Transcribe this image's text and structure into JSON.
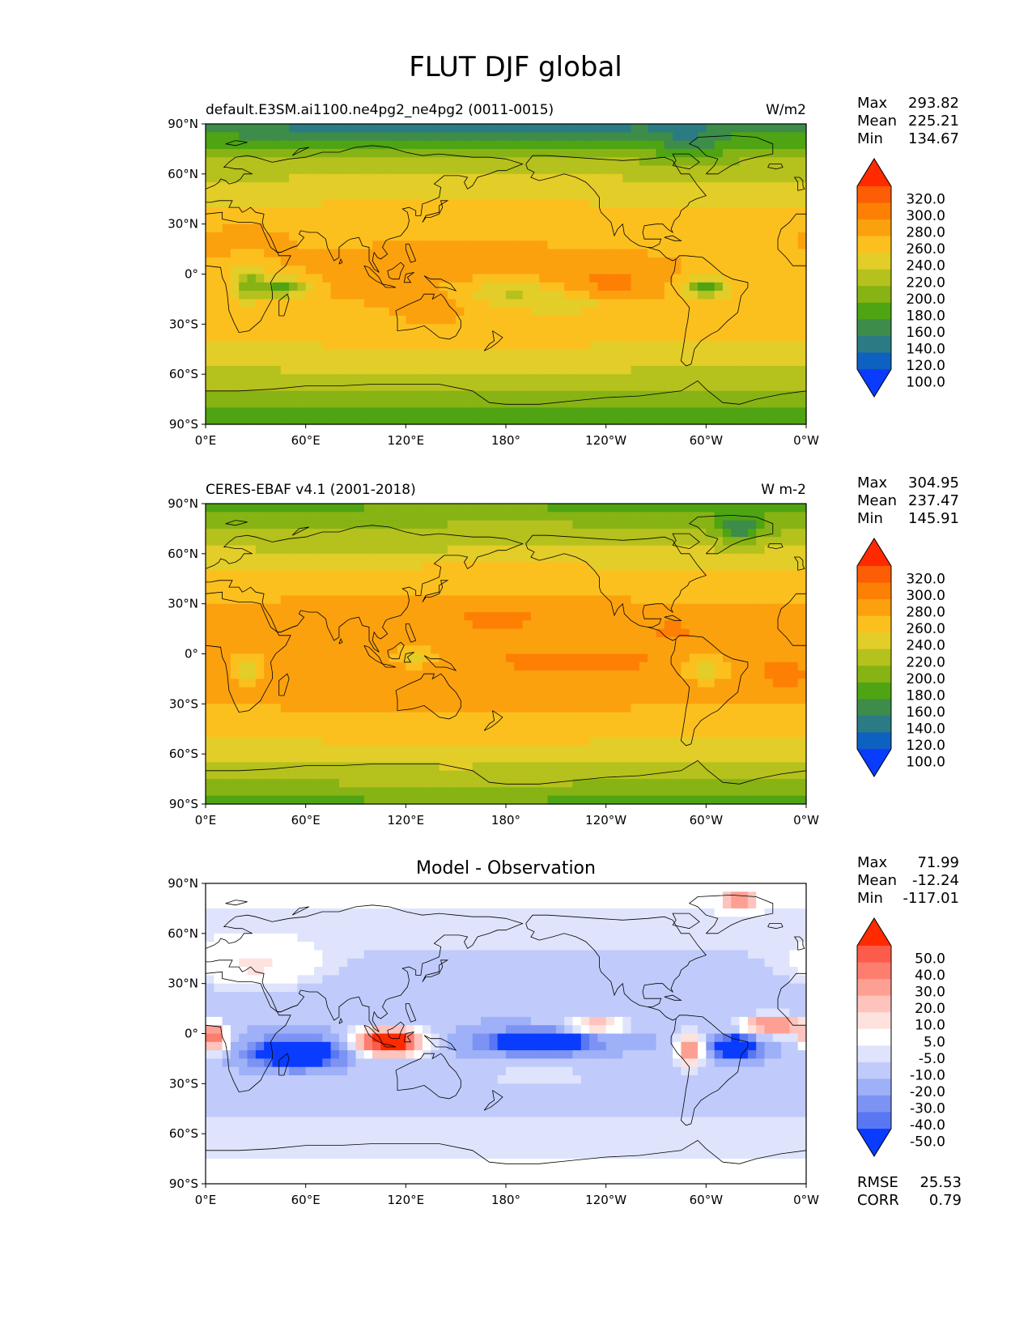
{
  "figure": {
    "title": "FLUT DJF global"
  },
  "x_ticks": [
    "0°E",
    "60°E",
    "120°E",
    "180°",
    "120°W",
    "60°W",
    "0°W"
  ],
  "y_ticks": [
    "90°N",
    "60°N",
    "30°N",
    "0°",
    "30°S",
    "60°S",
    "90°S"
  ],
  "panels": [
    {
      "id": "model",
      "title_left": "default.E3SM.ai1100.ne4pg2_ne4pg2 (0011-0015)",
      "title_center": "",
      "title_right": "W/m2",
      "stats": [
        {
          "label": "Max",
          "value": "293.82"
        },
        {
          "label": "Mean",
          "value": "225.21"
        },
        {
          "label": "Min",
          "value": "134.67"
        }
      ],
      "colorbar": {
        "levels": [
          "320.0",
          "300.0",
          "280.0",
          "260.0",
          "240.0",
          "220.0",
          "200.0",
          "180.0",
          "160.0",
          "140.0",
          "120.0",
          "100.0"
        ],
        "colors": [
          "#ff2a00",
          "#fc5d05",
          "#fd8004",
          "#fca10e",
          "#fcc01e",
          "#e3cd28",
          "#b5c11c",
          "#87b314",
          "#4ea412",
          "#3d8c4a",
          "#2a7b84",
          "#0d61c0",
          "#0a3cff"
        ]
      }
    },
    {
      "id": "obs",
      "title_left": "CERES-EBAF v4.1 (2001-2018)",
      "title_center": "",
      "title_right": "W m-2",
      "stats": [
        {
          "label": "Max",
          "value": "304.95"
        },
        {
          "label": "Mean",
          "value": "237.47"
        },
        {
          "label": "Min",
          "value": "145.91"
        }
      ],
      "colorbar": {
        "levels": [
          "320.0",
          "300.0",
          "280.0",
          "260.0",
          "240.0",
          "220.0",
          "200.0",
          "180.0",
          "160.0",
          "140.0",
          "120.0",
          "100.0"
        ],
        "colors": [
          "#ff2a00",
          "#fc5d05",
          "#fd8004",
          "#fca10e",
          "#fcc01e",
          "#e3cd28",
          "#b5c11c",
          "#87b314",
          "#4ea412",
          "#3d8c4a",
          "#2a7b84",
          "#0d61c0",
          "#0a3cff"
        ]
      }
    },
    {
      "id": "diff",
      "title_left": "",
      "title_center": "Model - Observation",
      "title_right": "",
      "stats": [
        {
          "label": "Max",
          "value": "71.99"
        },
        {
          "label": "Mean",
          "value": "-12.24"
        },
        {
          "label": "Min",
          "value": "-117.01"
        }
      ],
      "colorbar": {
        "levels": [
          "50.0",
          "40.0",
          "30.0",
          "20.0",
          "10.0",
          "5.0",
          "-5.0",
          "-10.0",
          "-20.0",
          "-30.0",
          "-40.0",
          "-50.0"
        ],
        "colors": [
          "#ff2a00",
          "#fd5c4a",
          "#fd7d6f",
          "#fda093",
          "#fdc3bc",
          "#fde2de",
          "#ffffff",
          "#dfe4fc",
          "#c0cbfb",
          "#9db0f8",
          "#7c93f3",
          "#5a77f3",
          "#0a3cff"
        ]
      },
      "metrics": [
        {
          "label": "RMSE",
          "value": "25.53"
        },
        {
          "label": "CORR",
          "value": "0.79"
        }
      ]
    }
  ]
}
